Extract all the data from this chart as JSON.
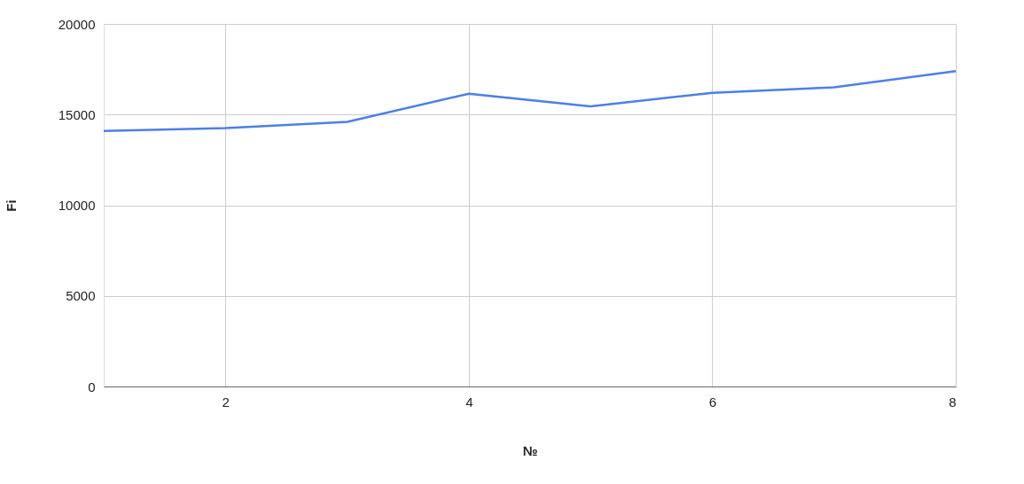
{
  "chart_data": {
    "type": "line",
    "xlabel": "№",
    "ylabel": "Fi",
    "x": [
      1,
      2,
      3,
      4,
      5,
      6,
      7,
      8
    ],
    "series": [
      {
        "color": "#4a80e8",
        "values": [
          14100,
          14250,
          14600,
          16150,
          15450,
          16200,
          16500,
          17400
        ]
      }
    ],
    "xlim": [
      1,
      8
    ],
    "xticks": [
      2,
      4,
      6,
      8
    ],
    "ylim": [
      0,
      20000
    ],
    "yticks": [
      0,
      5000,
      10000,
      15000,
      20000
    ],
    "grid": true,
    "marker": "none",
    "line_style": "solid"
  }
}
